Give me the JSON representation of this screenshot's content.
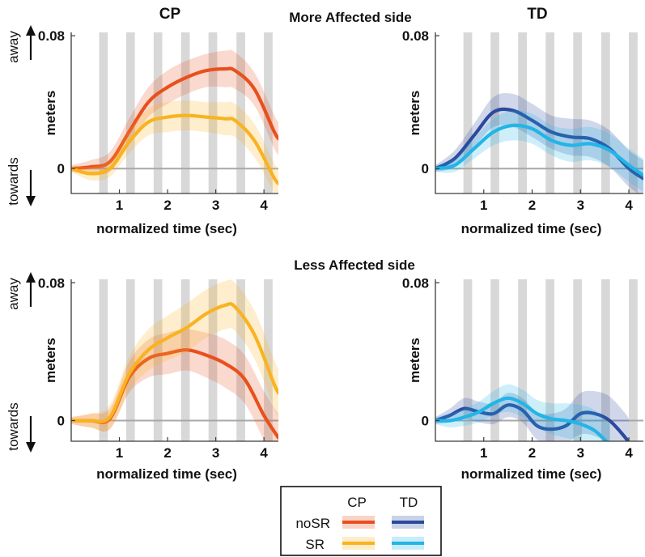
{
  "figure": {
    "group_labels": [
      "CP",
      "TD"
    ],
    "row_titles": [
      "More Affected side",
      "Less Affected side"
    ],
    "direction_labels": {
      "up": "away",
      "down": "towards"
    }
  },
  "legend": {
    "col_headers": [
      "CP",
      "TD"
    ],
    "row_labels": [
      "noSR",
      "SR"
    ],
    "colors": {
      "cp_nosr": "#e8501e",
      "cp_sr": "#f9b320",
      "td_nosr": "#2b4a9e",
      "td_sr": "#22b5e6"
    }
  },
  "colors": {
    "grey_band": "#d8d8d8",
    "zero_line": "#a8a8a8",
    "axis": "#3a3a3a"
  },
  "chart_data": [
    {
      "id": "cp_more",
      "type": "line",
      "title": "CP",
      "row_title": "More Affected side",
      "xlabel": "normalized time (sec)",
      "ylabel": "meters",
      "xlim": [
        0,
        4.3
      ],
      "ylim": [
        -0.015,
        0.082
      ],
      "xticks": [
        1,
        2,
        3,
        4
      ],
      "yticks": [
        0,
        0.08
      ],
      "ytick_labels": [
        "0",
        "0.08"
      ],
      "grey_bands": [
        [
          0.58,
          0.76
        ],
        [
          1.14,
          1.32
        ],
        [
          1.71,
          1.89
        ],
        [
          2.28,
          2.46
        ],
        [
          2.85,
          3.03
        ],
        [
          3.43,
          3.61
        ],
        [
          4.0,
          4.18
        ]
      ],
      "series": [
        {
          "name": "noSR",
          "color": "#e8501e",
          "x": [
            0,
            0.4,
            0.8,
            1.2,
            1.6,
            2.0,
            2.4,
            2.8,
            3.2,
            3.4,
            3.8,
            4.2,
            4.3
          ],
          "mean": [
            0,
            0.001,
            0.004,
            0.022,
            0.04,
            0.049,
            0.055,
            0.059,
            0.06,
            0.059,
            0.048,
            0.023,
            0.018
          ],
          "sd": [
            0.002,
            0.004,
            0.006,
            0.008,
            0.009,
            0.01,
            0.01,
            0.01,
            0.011,
            0.011,
            0.01,
            0.01,
            0.01
          ]
        },
        {
          "name": "SR",
          "color": "#f9b320",
          "x": [
            0,
            0.4,
            0.8,
            1.2,
            1.6,
            2.0,
            2.4,
            2.8,
            3.2,
            3.4,
            3.8,
            4.2,
            4.3
          ],
          "mean": [
            0,
            -0.003,
            0.0,
            0.016,
            0.028,
            0.031,
            0.032,
            0.031,
            0.03,
            0.029,
            0.017,
            -0.005,
            -0.009
          ],
          "sd": [
            0.002,
            0.004,
            0.005,
            0.007,
            0.008,
            0.009,
            0.009,
            0.009,
            0.01,
            0.01,
            0.01,
            0.009,
            0.009
          ]
        }
      ]
    },
    {
      "id": "td_more",
      "type": "line",
      "title": "TD",
      "row_title": "More Affected side",
      "xlabel": "normalized time (sec)",
      "ylabel": "meters",
      "xlim": [
        0,
        4.3
      ],
      "ylim": [
        -0.015,
        0.082
      ],
      "xticks": [
        1,
        2,
        3,
        4
      ],
      "yticks": [
        0,
        0.08
      ],
      "ytick_labels": [
        "0",
        "0.08"
      ],
      "grey_bands": [
        [
          0.58,
          0.76
        ],
        [
          1.14,
          1.32
        ],
        [
          1.71,
          1.89
        ],
        [
          2.28,
          2.46
        ],
        [
          2.85,
          3.03
        ],
        [
          3.43,
          3.61
        ],
        [
          4.0,
          4.18
        ]
      ],
      "series": [
        {
          "name": "noSR",
          "color": "#2b4a9e",
          "x": [
            0,
            0.4,
            0.8,
            1.2,
            1.6,
            2.0,
            2.4,
            2.8,
            3.2,
            3.6,
            4.0,
            4.3
          ],
          "mean": [
            0,
            0.006,
            0.02,
            0.034,
            0.035,
            0.029,
            0.022,
            0.019,
            0.018,
            0.012,
            0.0,
            -0.006
          ],
          "sd": [
            0.002,
            0.005,
            0.007,
            0.009,
            0.01,
            0.01,
            0.01,
            0.011,
            0.011,
            0.011,
            0.011,
            0.011
          ]
        },
        {
          "name": "SR",
          "color": "#22b5e6",
          "x": [
            0,
            0.4,
            0.8,
            1.2,
            1.6,
            2.0,
            2.4,
            2.8,
            3.2,
            3.6,
            4.0,
            4.3
          ],
          "mean": [
            0,
            0.002,
            0.012,
            0.022,
            0.026,
            0.024,
            0.017,
            0.014,
            0.015,
            0.011,
            0.002,
            -0.004
          ],
          "sd": [
            0.002,
            0.004,
            0.006,
            0.008,
            0.009,
            0.009,
            0.009,
            0.01,
            0.01,
            0.01,
            0.01,
            0.01
          ]
        }
      ]
    },
    {
      "id": "cp_less",
      "type": "line",
      "title": "",
      "row_title": "Less Affected side",
      "xlabel": "normalized time (sec)",
      "ylabel": "meters",
      "xlim": [
        0,
        4.3
      ],
      "ylim": [
        -0.012,
        0.082
      ],
      "xticks": [
        1,
        2,
        3,
        4
      ],
      "yticks": [
        0,
        0.08
      ],
      "ytick_labels": [
        "0",
        "0.08"
      ],
      "grey_bands": [
        [
          0.58,
          0.76
        ],
        [
          1.14,
          1.32
        ],
        [
          1.71,
          1.89
        ],
        [
          2.28,
          2.46
        ],
        [
          2.85,
          3.03
        ],
        [
          3.43,
          3.61
        ],
        [
          4.0,
          4.18
        ]
      ],
      "series": [
        {
          "name": "noSR",
          "color": "#e8501e",
          "x": [
            0,
            0.4,
            0.8,
            1.2,
            1.6,
            2.0,
            2.4,
            2.8,
            3.2,
            3.6,
            4.0,
            4.3
          ],
          "mean": [
            0,
            0.0,
            0.001,
            0.025,
            0.036,
            0.039,
            0.041,
            0.038,
            0.033,
            0.024,
            0.003,
            -0.01
          ],
          "sd": [
            0.002,
            0.004,
            0.006,
            0.009,
            0.011,
            0.012,
            0.012,
            0.013,
            0.014,
            0.014,
            0.014,
            0.014
          ]
        },
        {
          "name": "SR",
          "color": "#f9b320",
          "x": [
            0,
            0.4,
            0.8,
            1.2,
            1.6,
            2.0,
            2.4,
            2.8,
            3.2,
            3.4,
            3.8,
            4.2,
            4.3
          ],
          "mean": [
            0,
            0.0,
            0.002,
            0.027,
            0.041,
            0.048,
            0.054,
            0.062,
            0.067,
            0.066,
            0.05,
            0.022,
            0.016
          ],
          "sd": [
            0.002,
            0.004,
            0.007,
            0.01,
            0.012,
            0.013,
            0.014,
            0.014,
            0.014,
            0.014,
            0.014,
            0.014,
            0.014
          ]
        }
      ]
    },
    {
      "id": "td_less",
      "type": "line",
      "title": "",
      "row_title": "Less Affected side",
      "xlabel": "normalized time (sec)",
      "ylabel": "meters",
      "xlim": [
        0,
        4.3
      ],
      "ylim": [
        -0.012,
        0.082
      ],
      "xticks": [
        1,
        2,
        3,
        4
      ],
      "yticks": [
        0,
        0.08
      ],
      "ytick_labels": [
        "0",
        "0.08"
      ],
      "grey_bands": [
        [
          0.58,
          0.76
        ],
        [
          1.14,
          1.32
        ],
        [
          1.71,
          1.89
        ],
        [
          2.28,
          2.46
        ],
        [
          2.85,
          3.03
        ],
        [
          3.43,
          3.61
        ],
        [
          4.0,
          4.18
        ]
      ],
      "series": [
        {
          "name": "noSR",
          "color": "#2b4a9e",
          "x": [
            0,
            0.3,
            0.6,
            0.9,
            1.2,
            1.5,
            1.8,
            2.1,
            2.4,
            2.7,
            3.0,
            3.3,
            3.6,
            3.9,
            4.0
          ],
          "mean": [
            0,
            0.003,
            0.007,
            0.005,
            0.004,
            0.009,
            0.006,
            -0.003,
            -0.005,
            -0.003,
            0.004,
            0.004,
            0.0,
            -0.009,
            -0.013
          ],
          "sd": [
            0.002,
            0.004,
            0.006,
            0.006,
            0.006,
            0.007,
            0.007,
            0.008,
            0.009,
            0.01,
            0.012,
            0.013,
            0.014,
            0.014,
            0.014
          ]
        },
        {
          "name": "SR",
          "color": "#22b5e6",
          "x": [
            0,
            0.3,
            0.6,
            0.9,
            1.2,
            1.5,
            1.8,
            2.1,
            2.4,
            2.7,
            3.0,
            3.3,
            3.6
          ],
          "mean": [
            0,
            0.0,
            0.002,
            0.005,
            0.01,
            0.013,
            0.01,
            0.004,
            0.001,
            0.0,
            -0.002,
            -0.006,
            -0.014
          ],
          "sd": [
            0.002,
            0.004,
            0.005,
            0.006,
            0.007,
            0.008,
            0.008,
            0.008,
            0.009,
            0.01,
            0.011,
            0.012,
            0.012
          ]
        }
      ]
    }
  ]
}
